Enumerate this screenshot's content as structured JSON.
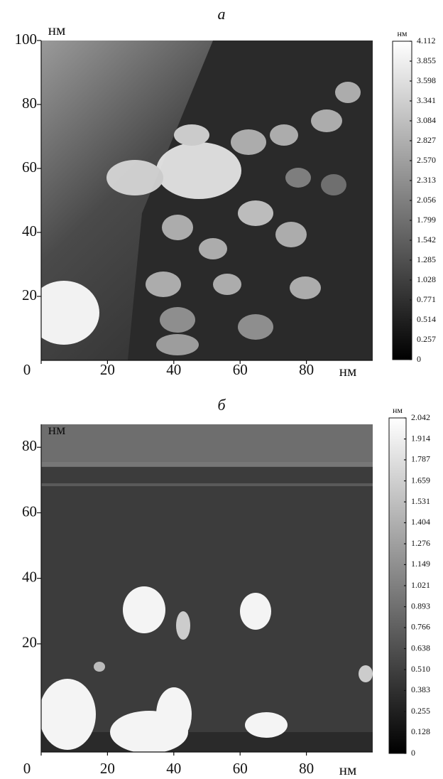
{
  "chart_data": [
    {
      "type": "heatmap",
      "title": "а",
      "xlabel": "нм",
      "ylabel": "нм",
      "xlim": [
        0,
        100
      ],
      "ylim": [
        0,
        100
      ],
      "xticks": [
        0,
        20,
        40,
        60,
        80
      ],
      "yticks": [
        20,
        40,
        60,
        80,
        100
      ],
      "colorbar": {
        "label": "нм",
        "lim": [
          0,
          4.112
        ],
        "ticks": [
          0,
          0.257,
          0.514,
          0.771,
          1.028,
          1.285,
          1.542,
          1.799,
          2.056,
          2.313,
          {
            "value": 2.57,
            "label": "2.570"
          },
          2.827,
          3.084,
          3.341,
          3.598,
          3.855,
          4.112
        ]
      }
    },
    {
      "type": "heatmap",
      "title": "б",
      "xlabel": "нм",
      "ylabel": "нм",
      "xlim": [
        0,
        100
      ],
      "ylim": [
        -13,
        87
      ],
      "xticks": [
        0,
        20,
        40,
        60,
        80
      ],
      "yticks": [
        20,
        40,
        60,
        80
      ],
      "colorbar": {
        "label": "нм",
        "lim": [
          0,
          2.042
        ],
        "ticks": [
          0,
          0.128,
          0.255,
          0.383,
          {
            "value": 0.51,
            "label": "0.510"
          },
          0.638,
          0.766,
          0.893,
          1.021,
          1.149,
          1.276,
          1.404,
          1.531,
          1.659,
          1.787,
          1.914,
          2.042
        ]
      }
    }
  ]
}
